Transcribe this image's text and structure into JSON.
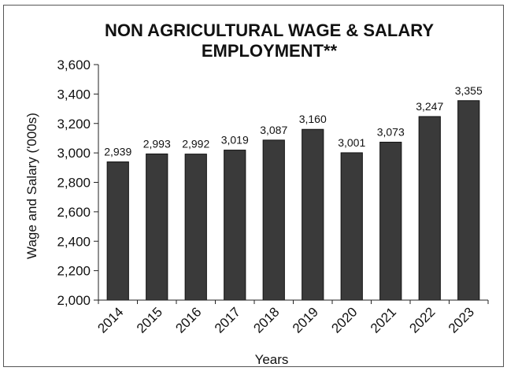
{
  "chart_data": {
    "type": "bar",
    "title_lines": [
      "NON AGRICULTURAL WAGE & SALARY",
      "EMPLOYMENT**"
    ],
    "xlabel": "Years",
    "ylabel": "Wage and Salary ('000s)",
    "categories": [
      "2014",
      "2015",
      "2016",
      "2017",
      "2018",
      "2019",
      "2020",
      "2021",
      "2022",
      "2023"
    ],
    "values": [
      2939,
      2993,
      2992,
      3019,
      3087,
      3160,
      3001,
      3073,
      3247,
      3355
    ],
    "value_labels": [
      "2,939",
      "2,993",
      "2,992",
      "3,019",
      "3,087",
      "3,160",
      "3,001",
      "3,073",
      "3,247",
      "3,355"
    ],
    "ylim": [
      2000,
      3600
    ],
    "yticks": [
      2000,
      2200,
      2400,
      2600,
      2800,
      3000,
      3200,
      3400,
      3600
    ],
    "ytick_labels": [
      "2,000",
      "2,200",
      "2,400",
      "2,600",
      "2,800",
      "3,000",
      "3,200",
      "3,400",
      "3,600"
    ],
    "bar_color": "#3a3a3a",
    "grid": false,
    "legend": "none"
  }
}
